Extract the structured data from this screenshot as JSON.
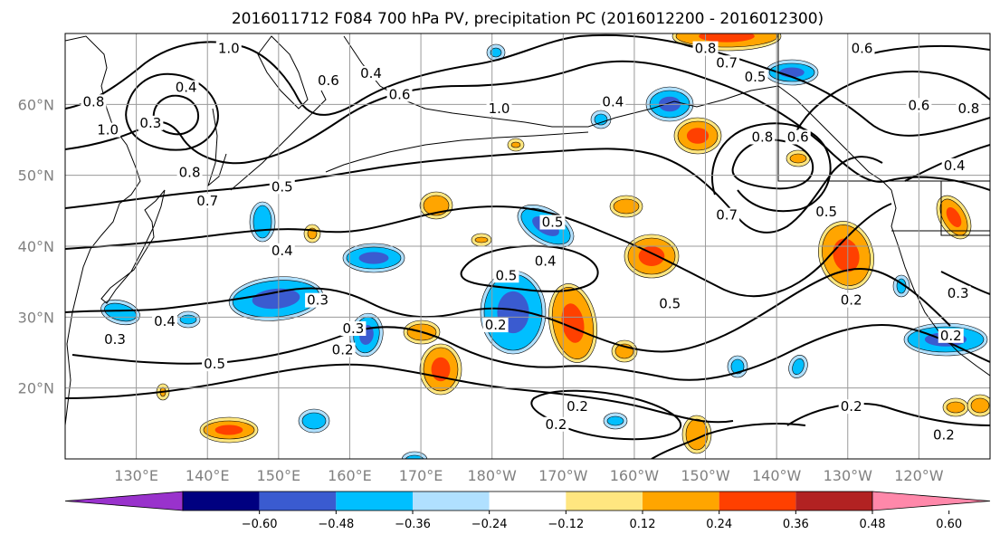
{
  "title": "2016011712 F084 700 hPa PV, precipitation PC (2016012200 - 2016012300)",
  "chart_data": {
    "type": "contour-map",
    "title": "2016011712 F084 700 hPa PV, precipitation PC (2016012200 - 2016012300)",
    "projection": "plate-carree",
    "lon_range": [
      120,
      250
    ],
    "lat_range": [
      10,
      70
    ],
    "lat_ticks": [
      {
        "lat": 20,
        "label": "20°N"
      },
      {
        "lat": 30,
        "label": "30°N"
      },
      {
        "lat": 40,
        "label": "40°N"
      },
      {
        "lat": 50,
        "label": "50°N"
      },
      {
        "lat": 60,
        "label": "60°N"
      }
    ],
    "lon_ticks": [
      {
        "lon": 130,
        "label": "130°E"
      },
      {
        "lon": 140,
        "label": "140°E"
      },
      {
        "lon": 150,
        "label": "150°E"
      },
      {
        "lon": 160,
        "label": "160°E"
      },
      {
        "lon": 170,
        "label": "170°E"
      },
      {
        "lon": 180,
        "label": "180°W"
      },
      {
        "lon": 190,
        "label": "170°W"
      },
      {
        "lon": 200,
        "label": "160°W"
      },
      {
        "lon": 210,
        "label": "150°W"
      },
      {
        "lon": 220,
        "label": "140°W"
      },
      {
        "lon": 230,
        "label": "130°W"
      },
      {
        "lon": 240,
        "label": "120°W"
      }
    ],
    "grid": true,
    "colorbar": {
      "orientation": "horizontal",
      "extend": "both",
      "boundaries": [
        -0.72,
        -0.6,
        -0.48,
        -0.36,
        -0.24,
        -0.12,
        0.12,
        0.24,
        0.36,
        0.48,
        0.6,
        0.72
      ],
      "colors": [
        "#9932cc",
        "#000080",
        "#3a5bd0",
        "#00bfff",
        "#b0e0ff",
        "#ffffff",
        "#ffe680",
        "#ffa500",
        "#ff4000",
        "#b22222",
        "#ff88aa"
      ],
      "tick_labels": [
        "−0.60",
        "−0.48",
        "−0.36",
        "−0.24",
        "−0.12",
        "0.12",
        "0.24",
        "0.36",
        "0.48",
        "0.60"
      ]
    },
    "contour_labels": [
      {
        "text": "1.0",
        "lon": 143,
        "lat": 67.5
      },
      {
        "text": "0.4",
        "lon": 137,
        "lat": 62
      },
      {
        "text": "0.8",
        "lon": 124,
        "lat": 60
      },
      {
        "text": "1.0",
        "lon": 126,
        "lat": 56
      },
      {
        "text": "0.3",
        "lon": 132,
        "lat": 57
      },
      {
        "text": "0.6",
        "lon": 157,
        "lat": 63
      },
      {
        "text": "0.4",
        "lon": 163,
        "lat": 64
      },
      {
        "text": "0.6",
        "lon": 167,
        "lat": 61
      },
      {
        "text": "1.0",
        "lon": 181,
        "lat": 59
      },
      {
        "text": "0.4",
        "lon": 197,
        "lat": 60
      },
      {
        "text": "0.8",
        "lon": 210,
        "lat": 67.5
      },
      {
        "text": "0.6",
        "lon": 232,
        "lat": 67.5
      },
      {
        "text": "0.7",
        "lon": 213,
        "lat": 65.5
      },
      {
        "text": "0.5",
        "lon": 217,
        "lat": 63.5
      },
      {
        "text": "0.8",
        "lon": 218,
        "lat": 55
      },
      {
        "text": "0.6",
        "lon": 223,
        "lat": 55
      },
      {
        "text": "0.6",
        "lon": 240,
        "lat": 59.5
      },
      {
        "text": "0.8",
        "lon": 247,
        "lat": 59
      },
      {
        "text": "0.4",
        "lon": 245,
        "lat": 51
      },
      {
        "text": "0.8",
        "lon": 137.5,
        "lat": 50
      },
      {
        "text": "0.7",
        "lon": 140,
        "lat": 46
      },
      {
        "text": "0.5",
        "lon": 150.5,
        "lat": 48
      },
      {
        "text": "0.5",
        "lon": 188.5,
        "lat": 43
      },
      {
        "text": "0.7",
        "lon": 213,
        "lat": 44
      },
      {
        "text": "0.5",
        "lon": 227,
        "lat": 44.5
      },
      {
        "text": "0.4",
        "lon": 150.5,
        "lat": 39
      },
      {
        "text": "0.4",
        "lon": 187.5,
        "lat": 37.5
      },
      {
        "text": "0.5",
        "lon": 182,
        "lat": 35.5
      },
      {
        "text": "0.5",
        "lon": 205,
        "lat": 31.5
      },
      {
        "text": "0.3",
        "lon": 155.5,
        "lat": 32
      },
      {
        "text": "0.4",
        "lon": 134,
        "lat": 29
      },
      {
        "text": "0.3",
        "lon": 127,
        "lat": 26.5
      },
      {
        "text": "0.3",
        "lon": 160.5,
        "lat": 28
      },
      {
        "text": "0.2",
        "lon": 159,
        "lat": 25
      },
      {
        "text": "0.2",
        "lon": 180.5,
        "lat": 28.5
      },
      {
        "text": "0.5",
        "lon": 141,
        "lat": 23
      },
      {
        "text": "0.2",
        "lon": 230.5,
        "lat": 32
      },
      {
        "text": "0.3",
        "lon": 245.5,
        "lat": 33
      },
      {
        "text": "0.2",
        "lon": 244.5,
        "lat": 27
      },
      {
        "text": "0.2",
        "lon": 192,
        "lat": 17
      },
      {
        "text": "0.2",
        "lon": 189,
        "lat": 14.5
      },
      {
        "text": "0.2",
        "lon": 230.5,
        "lat": 17
      },
      {
        "text": "0.2",
        "lon": 243.5,
        "lat": 13
      }
    ]
  }
}
